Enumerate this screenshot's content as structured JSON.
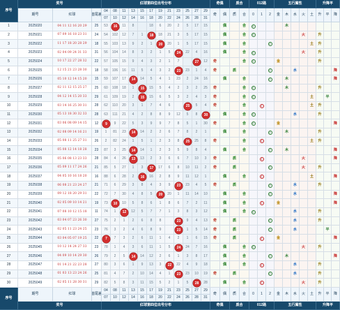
{
  "header": {
    "col_idx": "序号",
    "col_issue": "期号",
    "col_issue_sub": "排序",
    "group_prize": "奖号",
    "col_red": "红球",
    "col_sum": "首尾差",
    "group_dist": "红球第四位出号分布",
    "group_oddeven": "奇偶",
    "group_bigsmall": "质合",
    "group_012": "012路",
    "group_wuxing": "五行属性",
    "group_updown": "升降平",
    "oddeven_labels": [
      "奇",
      "偶"
    ],
    "bigsmall_labels": [
      "质",
      "合"
    ],
    "road_labels": [
      "0",
      "1",
      "2"
    ],
    "wuxing_labels": [
      "金",
      "木",
      "水",
      "火",
      "土"
    ],
    "updown_labels": [
      "升",
      "平",
      "降"
    ],
    "dist_top": [
      "04",
      "08",
      "11",
      "13",
      "15",
      "17",
      "19",
      "21",
      "23",
      "25",
      "27",
      "29"
    ],
    "dist_bot": [
      "07",
      "10",
      "12",
      "14",
      "16",
      "18",
      "20",
      "22",
      "24",
      "26",
      "28",
      "31"
    ],
    "dist_top_header": [
      "04",
      "08",
      "11",
      "13",
      "15",
      "17",
      "19",
      "21",
      "23",
      "25",
      "27",
      "29"
    ],
    "dist_bot_header": [
      "07",
      "10",
      "12",
      "14",
      "16",
      "18",
      "20",
      "22",
      "24",
      "26",
      "28",
      "31"
    ]
  },
  "footer": {
    "col_idx": "序号",
    "col_issue": "期号",
    "col_red": "红球",
    "col_sum": "首尾差",
    "group_prize": "奖号",
    "group_dist": "红球第四位出号分布",
    "group_oddeven": "奇偶",
    "group_bigsmall": "质合",
    "group_012": "012路",
    "group_wuxing": "五行属性",
    "group_updown": "升降平"
  },
  "chart_data": {
    "type": "table",
    "title": "红球第四位出号分布",
    "rows": [
      {
        "idx": "1",
        "issue": "2025020",
        "red": "04 11 12 16 20 29",
        "sum": "25",
        "pos": 1,
        "ball": "16",
        "dist": [
          "53",
          "101",
          "11",
          "8",
          "",
          "18",
          "6",
          "20",
          "2",
          "5",
          "17",
          "15"
        ],
        "oe": "偶",
        "bs": "合",
        "road": "0",
        "wx": "木",
        "ud": ""
      },
      {
        "idx": "2",
        "issue": "2025021",
        "red": "07 09 16 18 23 31",
        "sum": "24",
        "pos": 5,
        "ball": "18",
        "dist": [
          "54",
          "102",
          "12",
          "7",
          "1",
          "",
          "18",
          "21",
          "3",
          "5",
          "17",
          "15"
        ],
        "oe": "偶",
        "bs": "合",
        "road": "0",
        "wx": "火",
        "ud": "升"
      },
      {
        "idx": "3",
        "issue": "2025022",
        "red": "11 17 18 20 28 29",
        "sum": "18",
        "pos": 6,
        "ball": "20",
        "dist": [
          "55",
          "103",
          "13",
          "9",
          "2",
          "1",
          "",
          "20",
          "1",
          "5",
          "17",
          "15"
        ],
        "oe": "偶",
        "bs": "合",
        "road": "2",
        "wx": "土",
        "ud": "升"
      },
      {
        "idx": "4",
        "issue": "2025023",
        "red": "02 04 09 24 31 33",
        "sum": "31",
        "pos": 8,
        "ball": "24",
        "dist": [
          "56",
          "104",
          "14",
          "8",
          "3",
          "2",
          "1",
          "5",
          "",
          "22",
          "4",
          "16"
        ],
        "oe": "偶",
        "bs": "合",
        "road": "0",
        "wx": "火",
        "ud": "升"
      },
      {
        "idx": "5",
        "issue": "2025024",
        "red": "10 17 22 27 28 32",
        "sum": "22",
        "pos": 10,
        "ball": "27",
        "dist": [
          "57",
          "105",
          "15",
          "9",
          "4",
          "3",
          "2",
          "1",
          "7",
          "",
          "27",
          "12"
        ],
        "oe": "奇",
        "bs": "合",
        "road": "0",
        "wx": "金",
        "ud": "升"
      },
      {
        "idx": "6",
        "issue": "2025025",
        "red": "12 15 21 23 28 30",
        "sum": "18",
        "pos": 8,
        "ball": "23",
        "dist": [
          "58",
          "106",
          "16",
          "11",
          "5",
          "4",
          "3",
          "2",
          "",
          "23",
          "1",
          "4"
        ],
        "oe": "奇",
        "bs": "质",
        "road": "2",
        "wx": "水",
        "ud": "降"
      },
      {
        "idx": "7",
        "issue": "2025026",
        "red": "05 10 12 14 15 20",
        "sum": "15",
        "pos": 3,
        "ball": "14",
        "dist": [
          "59",
          "107",
          "17",
          "",
          "14",
          "5",
          "4",
          "1",
          "23",
          "2",
          "24",
          "16"
        ],
        "oe": "偶",
        "bs": "合",
        "road": "2",
        "wx": "木",
        "ud": "降"
      },
      {
        "idx": "8",
        "issue": "2025027",
        "red": "02 11 12 15 25 27",
        "sum": "25",
        "pos": 4,
        "ball": "15",
        "dist": [
          "60",
          "108",
          "18",
          "1",
          "",
          "15",
          "5",
          "4",
          "2",
          "3",
          "2",
          "25"
        ],
        "oe": "奇",
        "bs": "合",
        "road": "0",
        "wx": "木",
        "ud": "升"
      },
      {
        "idx": "9",
        "issue": "2025028",
        "red": "04 12 14 15 20 33",
        "sum": "29",
        "pos": 4,
        "ball": "15",
        "dist": [
          "61",
          "109",
          "19",
          "2",
          "",
          "15",
          "6",
          "5",
          "3",
          "2",
          "4",
          "3"
        ],
        "oe": "奇",
        "bs": "合",
        "road": "0",
        "wx": "土",
        "ud": "平"
      },
      {
        "idx": "10",
        "issue": "2025029",
        "red": "03 14 16 25 30 31",
        "sum": "28",
        "pos": 9,
        "ball": "25",
        "dist": [
          "62",
          "110",
          "20",
          "3",
          "1",
          "7",
          "4",
          "6",
          "",
          "25",
          "5",
          "4"
        ],
        "oe": "奇",
        "bs": "合",
        "road": "1",
        "wx": "土",
        "ud": "升"
      },
      {
        "idx": "11",
        "issue": "2025030",
        "red": "05 13 18 30 32 33",
        "sum": "28",
        "pos": 11,
        "ball": "30",
        "dist": [
          "63",
          "111",
          "21",
          "4",
          "2",
          "8",
          "8",
          "9",
          "12",
          "5",
          "8",
          "30"
        ],
        "oe": "偶",
        "bs": "合",
        "road": "0",
        "wx": "水",
        "ud": "升"
      },
      {
        "idx": "12",
        "issue": "2025031",
        "red": "03 06 08 09 14 15",
        "sum": "12",
        "pos": 0,
        "ball": "9",
        "dist": [
          "",
          "9",
          "22",
          "5",
          "3",
          "9",
          "9",
          "7",
          "8",
          "5",
          "1",
          "30"
        ],
        "oe": "奇",
        "bs": "合",
        "road": "0",
        "wx": "金",
        "ud": "降"
      },
      {
        "idx": "13",
        "issue": "2025032",
        "red": "02 08 09 14 16 21",
        "sum": "19",
        "pos": 3,
        "ball": "14",
        "dist": [
          "1",
          "81",
          "23",
          "",
          "14",
          "2",
          "2",
          "6",
          "7",
          "8",
          "2",
          "1"
        ],
        "oe": "偶",
        "bs": "合",
        "road": "2",
        "wx": "木",
        "ud": "升"
      },
      {
        "idx": "14",
        "issue": "2025033",
        "red": "05 08 11 25 27 31",
        "sum": "26",
        "pos": 9,
        "ball": "25",
        "dist": [
          "2",
          "82",
          "24",
          "1",
          "5",
          "1",
          "2",
          "3",
          "8",
          "",
          "25",
          "8"
        ],
        "oe": "奇",
        "bs": "合",
        "road": "1",
        "wx": "土",
        "ud": "升"
      },
      {
        "idx": "15",
        "issue": "2025034",
        "red": "05 08 12 14 18 28",
        "sum": "23",
        "pos": 3,
        "ball": "14",
        "dist": [
          "87",
          "3",
          "25",
          "",
          "14",
          "1",
          "2",
          "3",
          "5",
          "9",
          "8",
          "4"
        ],
        "oe": "偶",
        "bs": "合",
        "road": "2",
        "wx": "木",
        "ud": "降"
      },
      {
        "idx": "16",
        "issue": "2025035",
        "red": "05 06 08 13 23 33",
        "sum": "28",
        "pos": 3,
        "ball": "13",
        "dist": [
          "84",
          "4",
          "26",
          "",
          "13",
          "2",
          "3",
          "6",
          "6",
          "7",
          "10",
          "3"
        ],
        "oe": "奇",
        "bs": "质",
        "road": "1",
        "wx": "火",
        "ud": "降"
      },
      {
        "idx": "17",
        "issue": "2025036",
        "red": "05 09 11 17 24 26",
        "sum": "21",
        "pos": 5,
        "ball": "17",
        "dist": [
          "85",
          "5",
          "27",
          "1",
          "3",
          "",
          "17",
          "6",
          "8",
          "10",
          "11",
          "2"
        ],
        "oe": "奇",
        "bs": "质",
        "road": "2",
        "wx": "火",
        "ud": "升"
      },
      {
        "idx": "18",
        "issue": "2025037",
        "red": "04 05 10 16 18 20",
        "sum": "16",
        "pos": 4,
        "ball": "16",
        "dist": [
          "88",
          "6",
          "28",
          "2",
          "",
          "16",
          "2",
          "8",
          "9",
          "11",
          "12",
          "1"
        ],
        "oe": "偶",
        "bs": "合",
        "road": "1",
        "wx": "土",
        "ud": "降"
      },
      {
        "idx": "19",
        "issue": "2025038",
        "red": "06 08 21 23 24 27",
        "sum": "21",
        "pos": 8,
        "ball": "23",
        "dist": [
          "71",
          "6",
          "29",
          "3",
          "8",
          "4",
          "3",
          "9",
          "",
          "23",
          "4",
          "5"
        ],
        "oe": "奇",
        "bs": "质",
        "road": "2",
        "wx": "水",
        "ud": "升"
      },
      {
        "idx": "20",
        "issue": "2025039",
        "red": "09 12 18 20 29 31",
        "sum": "22",
        "pos": 6,
        "ball": "20",
        "dist": [
          "72",
          "7",
          "30",
          "4",
          "8",
          "5",
          "",
          "20",
          "1",
          "11",
          "14",
          "10"
        ],
        "oe": "偶",
        "bs": "合",
        "road": "2",
        "wx": "水",
        "ud": "降"
      },
      {
        "idx": "21",
        "issue": "2025040",
        "red": "02 05 09 10 14 21",
        "sum": "19",
        "pos": 1,
        "ball": "10",
        "dist": [
          "73",
          "",
          "10",
          "5",
          "8",
          "6",
          "1",
          "8",
          "6",
          "7",
          "2",
          "11"
        ],
        "oe": "偶",
        "bs": "合",
        "road": "1",
        "wx": "金",
        "ud": "降"
      },
      {
        "idx": "22",
        "issue": "2025041",
        "red": "07 08 10 12 15 18",
        "sum": "11",
        "pos": 2,
        "ball": "12",
        "dist": [
          "74",
          "1",
          "",
          "12",
          "5",
          "7",
          "7",
          "1",
          "3",
          "8",
          "3",
          "12"
        ],
        "oe": "偶",
        "bs": "合",
        "road": "0",
        "wx": "水",
        "ud": "升"
      },
      {
        "idx": "23",
        "issue": "2025042",
        "red": "03 04 07 23 26 30",
        "sum": "27",
        "pos": 8,
        "ball": "23",
        "dist": [
          "75",
          "2",
          "1",
          "2",
          "6",
          "8",
          "8",
          "",
          "23",
          "9",
          "4",
          "13"
        ],
        "oe": "奇",
        "bs": "质",
        "road": "2",
        "wx": "水",
        "ud": "升"
      },
      {
        "idx": "24",
        "issue": "2025043",
        "red": "02 05 11 23 24 25",
        "sum": "23",
        "pos": 8,
        "ball": "23",
        "dist": [
          "76",
          "3",
          "2",
          "4",
          "6",
          "8",
          "9",
          "",
          "23",
          "1",
          "5",
          "14"
        ],
        "oe": "奇",
        "bs": "质",
        "road": "2",
        "wx": "水",
        "ud": "平"
      },
      {
        "idx": "25",
        "issue": "2025044",
        "red": "03 04 05 07 19 25",
        "sum": "22",
        "pos": 0,
        "ball": "7",
        "dist": [
          "",
          "7",
          "3",
          "2",
          "6",
          "11",
          "1",
          "4",
          "2",
          "1",
          "6",
          "15"
        ],
        "oe": "奇",
        "bs": "质",
        "road": "1",
        "wx": "金",
        "ud": "降"
      },
      {
        "idx": "26",
        "issue": "2025045",
        "red": "10 12 14 24 27 33",
        "sum": "23",
        "pos": 8,
        "ball": "24",
        "dist": [
          "78",
          "1",
          "4",
          "3",
          "6",
          "11",
          "1",
          "5",
          "",
          "24",
          "7",
          "16"
        ],
        "oe": "偶",
        "bs": "合",
        "road": "0",
        "wx": "火",
        "ud": "升"
      },
      {
        "idx": "27",
        "issue": "2025046",
        "red": "04 09 10 14 29 30",
        "sum": "26",
        "pos": 3,
        "ball": "14",
        "dist": [
          "79",
          "2",
          "5",
          "",
          "14",
          "12",
          "2",
          "6",
          "1",
          "3",
          "8",
          "17"
        ],
        "oe": "偶",
        "bs": "合",
        "road": "2",
        "wx": "木",
        "ud": "降"
      },
      {
        "idx": "28",
        "issue": "2025047",
        "red": "01 14 21 22 23 28",
        "sum": "27",
        "pos": 7,
        "ball": "22",
        "dist": [
          "80",
          "3",
          "6",
          "1",
          "9",
          "13",
          "3",
          "",
          "22",
          "4",
          "9",
          "18"
        ],
        "oe": "偶",
        "bs": "合",
        "road": "1",
        "wx": "水",
        "ud": "升"
      },
      {
        "idx": "29",
        "issue": "2025048",
        "red": "01 03 13 23 24 26",
        "sum": "25",
        "pos": 8,
        "ball": "23",
        "dist": [
          "81",
          "4",
          "7",
          "2",
          "10",
          "14",
          "4",
          "1",
          "",
          "23",
          "10",
          "19"
        ],
        "oe": "奇",
        "bs": "质",
        "road": "2",
        "wx": "水",
        "ud": "升"
      },
      {
        "idx": "30",
        "issue": "2025049",
        "red": "02 05 11 28 30 31",
        "sum": "29",
        "pos": 10,
        "ball": "28",
        "dist": [
          "82",
          "5",
          "8",
          "3",
          "11",
          "15",
          "5",
          "2",
          "1",
          "5",
          "",
          "28"
        ],
        "oe": "偶",
        "bs": "合",
        "road": "1",
        "wx": "火",
        "ud": "升"
      }
    ]
  }
}
